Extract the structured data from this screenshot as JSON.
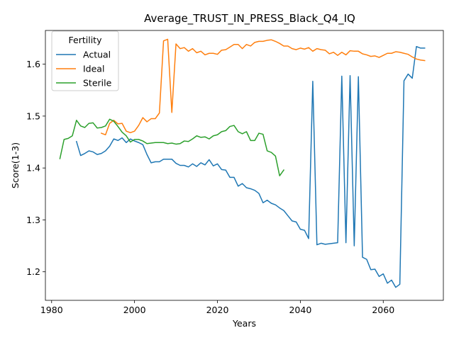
{
  "chart_data": {
    "type": "line",
    "title": "Average_TRUST_IN_PRESS_Black_Q4_IQ",
    "xlabel": "Years",
    "ylabel": "Score(1-3)",
    "xlim": [
      1978.5,
      2074.5
    ],
    "ylim": [
      1.145,
      1.665
    ],
    "x_ticks": [
      1980,
      2000,
      2020,
      2040,
      2060
    ],
    "y_ticks": [
      1.2,
      1.3,
      1.4,
      1.5,
      1.6
    ],
    "grid": false,
    "legend": {
      "title": "Fertility",
      "placement": "top-left"
    },
    "series": [
      {
        "name": "Actual",
        "color": "#1f77b4",
        "x": [
          1986,
          1987,
          1988,
          1989,
          1990,
          1991,
          1992,
          1993,
          1994,
          1995,
          1996,
          1997,
          1998,
          1999,
          2000,
          2001,
          2002,
          2003,
          2004,
          2005,
          2006,
          2007,
          2008,
          2009,
          2010,
          2011,
          2012,
          2013,
          2014,
          2015,
          2016,
          2017,
          2018,
          2019,
          2020,
          2021,
          2022,
          2023,
          2024,
          2025,
          2026,
          2027,
          2028,
          2029,
          2030,
          2031,
          2032,
          2033,
          2034,
          2035,
          2036,
          2037,
          2038,
          2039,
          2040,
          2041,
          2042,
          2043,
          2044,
          2045,
          2046,
          2047,
          2048,
          2049,
          2050,
          2051,
          2052,
          2053,
          2054,
          2055,
          2056,
          2057,
          2058,
          2059,
          2060,
          2061,
          2062,
          2063,
          2064,
          2065,
          2066,
          2067,
          2068,
          2069,
          2070
        ],
        "values": [
          1.451,
          1.424,
          1.428,
          1.433,
          1.431,
          1.426,
          1.428,
          1.433,
          1.442,
          1.456,
          1.453,
          1.458,
          1.449,
          1.456,
          1.452,
          1.449,
          1.445,
          1.426,
          1.41,
          1.412,
          1.412,
          1.417,
          1.417,
          1.417,
          1.409,
          1.405,
          1.405,
          1.402,
          1.408,
          1.403,
          1.41,
          1.406,
          1.416,
          1.404,
          1.408,
          1.397,
          1.396,
          1.382,
          1.382,
          1.365,
          1.37,
          1.362,
          1.36,
          1.357,
          1.351,
          1.333,
          1.338,
          1.332,
          1.329,
          1.323,
          1.318,
          1.308,
          1.298,
          1.296,
          1.282,
          1.28,
          1.264,
          1.567,
          1.252,
          1.255,
          1.253,
          1.254,
          1.255,
          1.256,
          1.577,
          1.256,
          1.578,
          1.25,
          1.576,
          1.228,
          1.224,
          1.204,
          1.205,
          1.191,
          1.196,
          1.178,
          1.184,
          1.17,
          1.176,
          1.568,
          1.581,
          1.573,
          1.634,
          1.631,
          1.631
        ]
      },
      {
        "name": "Ideal",
        "color": "#ff7f0e",
        "x": [
          1992,
          1993,
          1994,
          1995,
          1996,
          1997,
          1998,
          1999,
          2000,
          2001,
          2002,
          2003,
          2004,
          2005,
          2006,
          2007,
          2008,
          2009,
          2010,
          2011,
          2012,
          2013,
          2014,
          2015,
          2016,
          2017,
          2018,
          2019,
          2020,
          2021,
          2022,
          2023,
          2024,
          2025,
          2026,
          2027,
          2028,
          2029,
          2030,
          2031,
          2032,
          2033,
          2034,
          2035,
          2036,
          2037,
          2038,
          2039,
          2040,
          2041,
          2042,
          2043,
          2044,
          2045,
          2046,
          2047,
          2048,
          2049,
          2050,
          2051,
          2052,
          2053,
          2054,
          2055,
          2056,
          2057,
          2058,
          2059,
          2060,
          2061,
          2062,
          2063,
          2064,
          2065,
          2066,
          2067,
          2068,
          2069,
          2070
        ],
        "values": [
          1.467,
          1.464,
          1.486,
          1.492,
          1.485,
          1.486,
          1.471,
          1.468,
          1.471,
          1.482,
          1.497,
          1.489,
          1.495,
          1.495,
          1.506,
          1.645,
          1.648,
          1.507,
          1.639,
          1.63,
          1.632,
          1.625,
          1.63,
          1.622,
          1.625,
          1.618,
          1.621,
          1.621,
          1.619,
          1.627,
          1.628,
          1.633,
          1.638,
          1.638,
          1.63,
          1.638,
          1.635,
          1.642,
          1.644,
          1.644,
          1.646,
          1.647,
          1.644,
          1.64,
          1.635,
          1.635,
          1.63,
          1.628,
          1.631,
          1.629,
          1.632,
          1.625,
          1.63,
          1.628,
          1.627,
          1.62,
          1.623,
          1.617,
          1.623,
          1.618,
          1.626,
          1.625,
          1.625,
          1.62,
          1.618,
          1.615,
          1.616,
          1.613,
          1.617,
          1.621,
          1.621,
          1.624,
          1.623,
          1.621,
          1.619,
          1.614,
          1.61,
          1.608,
          1.607
        ]
      },
      {
        "name": "Sterile",
        "color": "#2ca02c",
        "x": [
          1982,
          1983,
          1984,
          1985,
          1986,
          1987,
          1988,
          1989,
          1990,
          1991,
          1992,
          1993,
          1994,
          1995,
          1996,
          1997,
          1998,
          1999,
          2000,
          2001,
          2002,
          2003,
          2004,
          2005,
          2006,
          2007,
          2008,
          2009,
          2010,
          2011,
          2012,
          2013,
          2014,
          2015,
          2016,
          2017,
          2018,
          2019,
          2020,
          2021,
          2022,
          2023,
          2024,
          2025,
          2026,
          2027,
          2028,
          2029,
          2030,
          2031,
          2032,
          2033,
          2034,
          2035,
          2036
        ],
        "values": [
          1.418,
          1.455,
          1.457,
          1.462,
          1.492,
          1.481,
          1.478,
          1.486,
          1.487,
          1.477,
          1.478,
          1.481,
          1.494,
          1.49,
          1.48,
          1.469,
          1.462,
          1.45,
          1.455,
          1.455,
          1.452,
          1.447,
          1.448,
          1.449,
          1.449,
          1.449,
          1.447,
          1.448,
          1.446,
          1.447,
          1.452,
          1.451,
          1.456,
          1.462,
          1.459,
          1.46,
          1.456,
          1.462,
          1.464,
          1.47,
          1.472,
          1.48,
          1.482,
          1.47,
          1.466,
          1.47,
          1.453,
          1.453,
          1.467,
          1.465,
          1.433,
          1.43,
          1.423,
          1.385,
          1.396
        ]
      }
    ]
  }
}
